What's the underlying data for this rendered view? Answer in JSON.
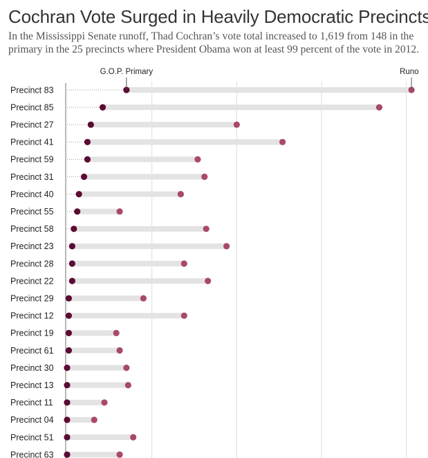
{
  "title": "Cochran Vote Surged in Heavily Democratic Precincts",
  "subtitle": "In the Mississippi Senate runoff, Thad Cochran’s vote total increased to 1,619 from 148 in the primary in the 25 precincts where President Obama won at least 99 percent of the vote in 2012.",
  "colors": {
    "primary": "#5c0b33",
    "runoff": "#a8496c",
    "bar": "#e3e3e3",
    "grid": "#dcdcdc",
    "axis": "#888888"
  },
  "chart_data": {
    "type": "dot-range",
    "title": "Cochran Vote Surged in Heavily Democratic Precincts",
    "series": [
      {
        "name": "G.O.P. Primary",
        "key": "primary"
      },
      {
        "name": "Runoff",
        "key": "runoff"
      }
    ],
    "legend_labels": [
      "G.O.P. Primary",
      "Runo"
    ],
    "xlim": [
      0,
      205
    ],
    "grid": true,
    "categories": [
      "Precinct 83",
      "Precinct 85",
      "Precinct 27",
      "Precinct 41",
      "Precinct 59",
      "Precinct 31",
      "Precinct 40",
      "Precinct 55",
      "Precinct 58",
      "Precinct 23",
      "Precinct 28",
      "Precinct 22",
      "Precinct 29",
      "Precinct 12",
      "Precinct 19",
      "Precinct 61",
      "Precinct 30",
      "Precinct 13",
      "Precinct 11",
      "Precinct 04",
      "Precinct 51",
      "Precinct 63"
    ],
    "primary": [
      35,
      21,
      14,
      12,
      12,
      10,
      7,
      6,
      4,
      3,
      3,
      3,
      1,
      1,
      1,
      1,
      0,
      0,
      0,
      0,
      0,
      0
    ],
    "runoff": [
      203,
      184,
      100,
      127,
      77,
      81,
      67,
      31,
      82,
      94,
      69,
      83,
      45,
      69,
      29,
      31,
      35,
      36,
      22,
      16,
      39,
      31
    ]
  }
}
